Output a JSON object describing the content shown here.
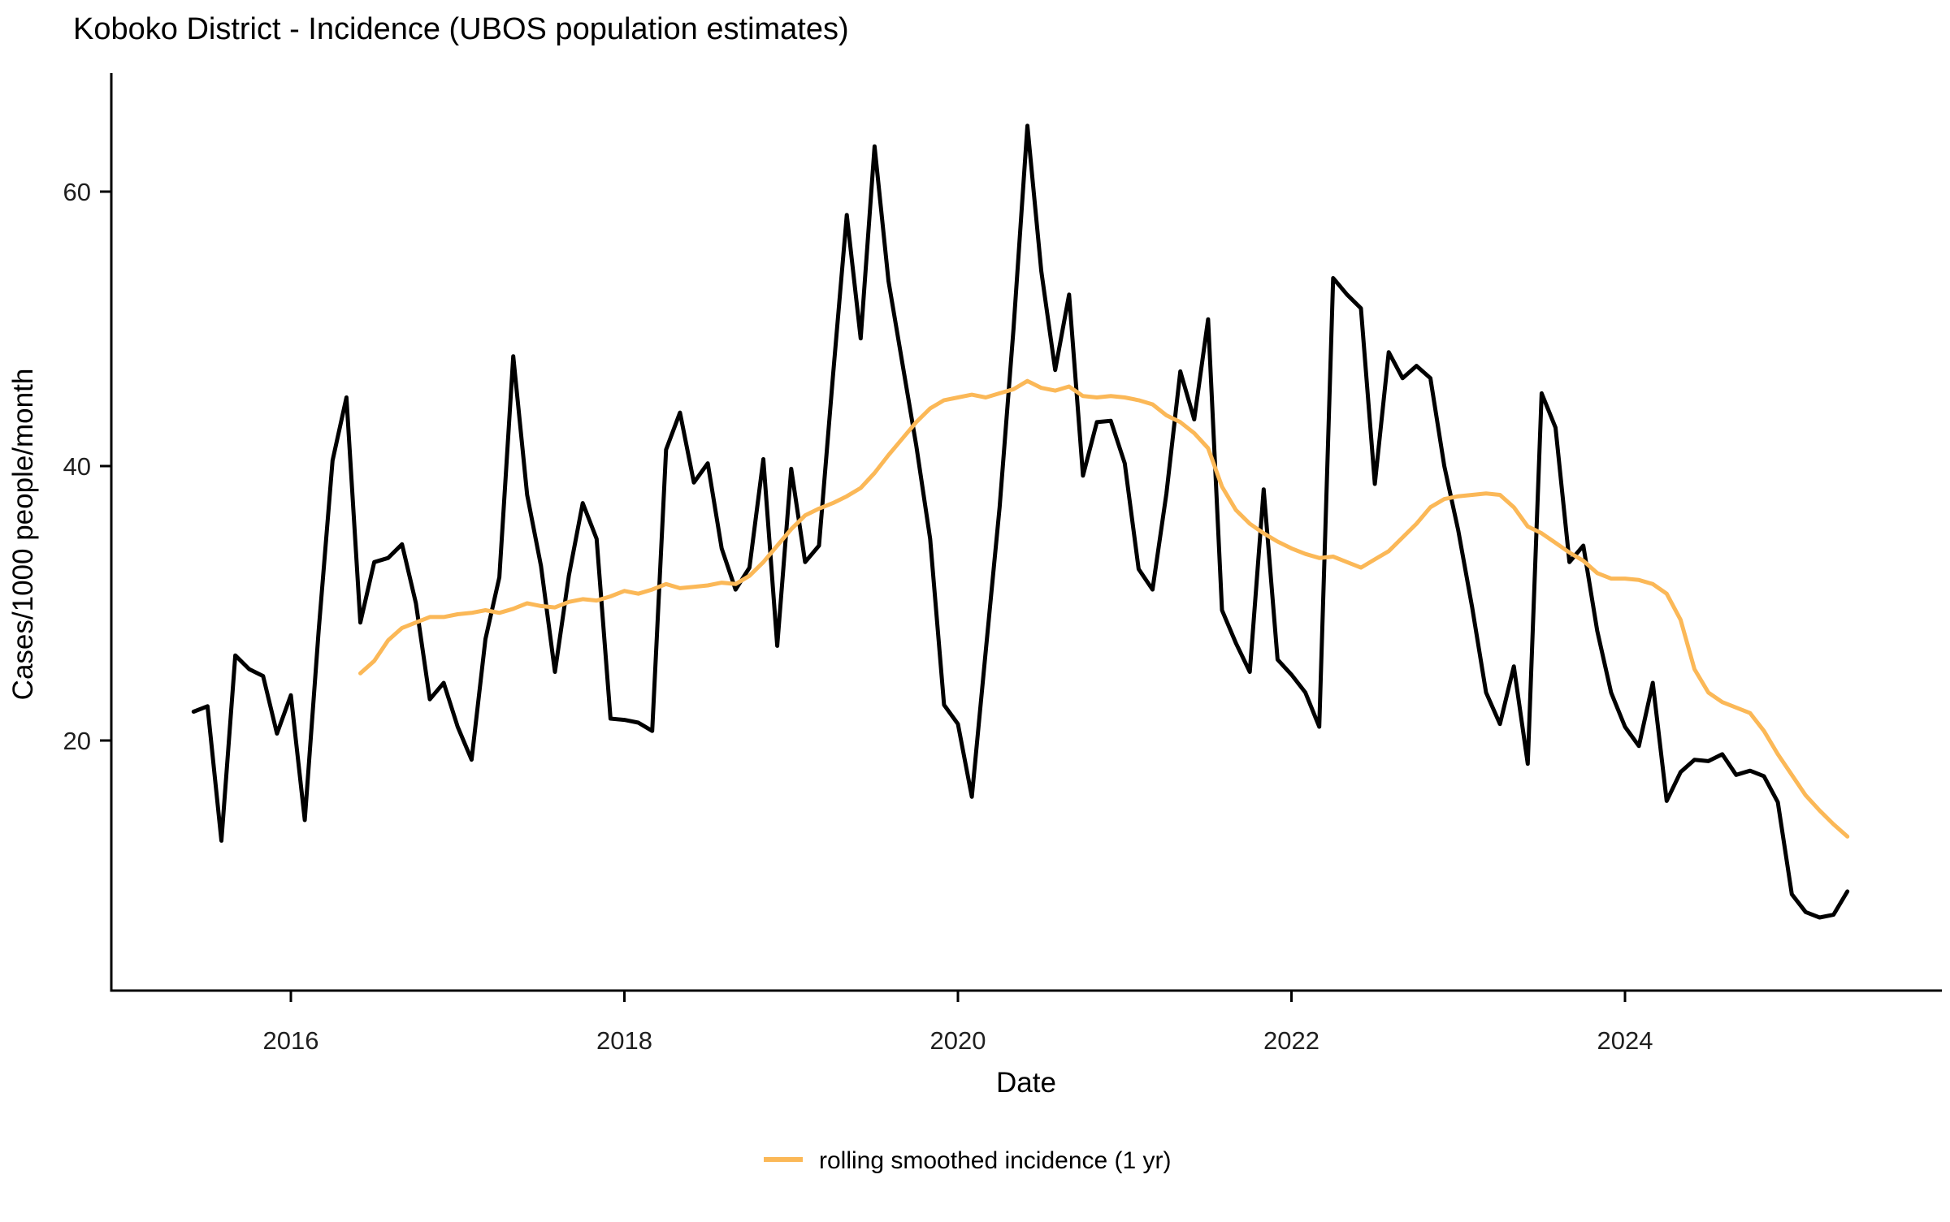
{
  "page": {
    "background": "#ffffff"
  },
  "chart_data": {
    "type": "line",
    "title": "Koboko District - Incidence (UBOS population estimates)",
    "xlabel": "Date",
    "ylabel": "Cases/1000 people/month",
    "x_tick_labels": [
      "2016",
      "2018",
      "2020",
      "2022",
      "2024"
    ],
    "x_tick_years": [
      2016,
      2018,
      2020,
      2022,
      2024
    ],
    "y_ticks": [
      20,
      40,
      60
    ],
    "ylim": [
      1.5,
      68
    ],
    "xlim_years": [
      2014.9,
      2025.9
    ],
    "grid": false,
    "legend_position": "bottom",
    "axis_color": "#000000",
    "series": [
      {
        "id": "monthly-incidence",
        "legend_label": "",
        "color": "#000000",
        "stroke_width": 5,
        "start_year": 2015,
        "start_month": 6,
        "values": [
          22.1,
          22.5,
          12.7,
          26.2,
          25.2,
          24.7,
          20.5,
          23.3,
          14.2,
          28.0,
          40.4,
          45.0,
          28.6,
          33.0,
          33.3,
          34.3,
          30.0,
          23.0,
          24.2,
          21.0,
          18.6,
          27.4,
          31.9,
          48.0,
          37.9,
          32.7,
          25.0,
          32.0,
          37.3,
          34.7,
          21.6,
          21.5,
          21.3,
          20.7,
          41.2,
          43.9,
          38.8,
          40.2,
          34.0,
          31.0,
          32.6,
          40.5,
          26.9,
          39.8,
          33.0,
          34.2,
          46.5,
          58.3,
          49.3,
          63.3,
          53.5,
          47.5,
          41.5,
          34.7,
          22.6,
          21.2,
          15.9,
          26.5,
          37.0,
          50.0,
          64.8,
          54.2,
          47.0,
          52.5,
          39.3,
          43.2,
          43.3,
          40.2,
          32.5,
          31.0,
          38.0,
          46.9,
          43.4,
          50.7,
          29.5,
          27.1,
          25.0,
          38.3,
          25.9,
          24.8,
          23.5,
          21.0,
          53.7,
          52.5,
          51.5,
          38.7,
          48.3,
          46.4,
          47.3,
          46.4,
          40.0,
          35.3,
          29.7,
          23.5,
          21.2,
          25.4,
          18.3,
          45.3,
          42.8,
          33.0,
          34.2,
          28.0,
          23.5,
          21.0,
          19.6,
          24.2,
          15.6,
          17.7,
          18.6,
          18.5,
          19.0,
          17.5,
          17.8,
          17.4,
          15.5,
          8.8,
          7.5,
          7.1,
          7.3,
          9.0
        ]
      },
      {
        "id": "rolling-smoothed-incidence",
        "legend_label": "rolling smoothed incidence (1 yr)",
        "color": "#FBB857",
        "stroke_width": 5,
        "start_year": 2016,
        "start_month": 6,
        "values": [
          24.9,
          25.8,
          27.3,
          28.2,
          28.6,
          29.0,
          29.0,
          29.2,
          29.3,
          29.5,
          29.3,
          29.6,
          30.0,
          29.8,
          29.7,
          30.1,
          30.3,
          30.2,
          30.5,
          30.9,
          30.7,
          31.0,
          31.4,
          31.1,
          31.2,
          31.3,
          31.5,
          31.4,
          32.0,
          33.0,
          34.2,
          35.4,
          36.4,
          36.9,
          37.3,
          37.8,
          38.4,
          39.5,
          40.8,
          42.0,
          43.2,
          44.2,
          44.8,
          45.0,
          45.2,
          45.0,
          45.3,
          45.6,
          46.2,
          45.7,
          45.5,
          45.8,
          45.1,
          45.0,
          45.1,
          45.0,
          44.8,
          44.5,
          43.7,
          43.2,
          42.4,
          41.3,
          38.5,
          36.8,
          35.8,
          35.1,
          34.5,
          34.0,
          33.6,
          33.3,
          33.4,
          33.0,
          32.6,
          33.2,
          33.8,
          34.8,
          35.8,
          37.0,
          37.6,
          37.8,
          37.9,
          38.0,
          37.9,
          37.0,
          35.6,
          35.1,
          34.4,
          33.7,
          33.1,
          32.2,
          31.8,
          31.8,
          31.7,
          31.4,
          30.7,
          28.8,
          25.2,
          23.5,
          22.8,
          22.4,
          22.0,
          20.7,
          19.0,
          17.5,
          16.0,
          14.9,
          13.9,
          13.0
        ]
      }
    ]
  }
}
